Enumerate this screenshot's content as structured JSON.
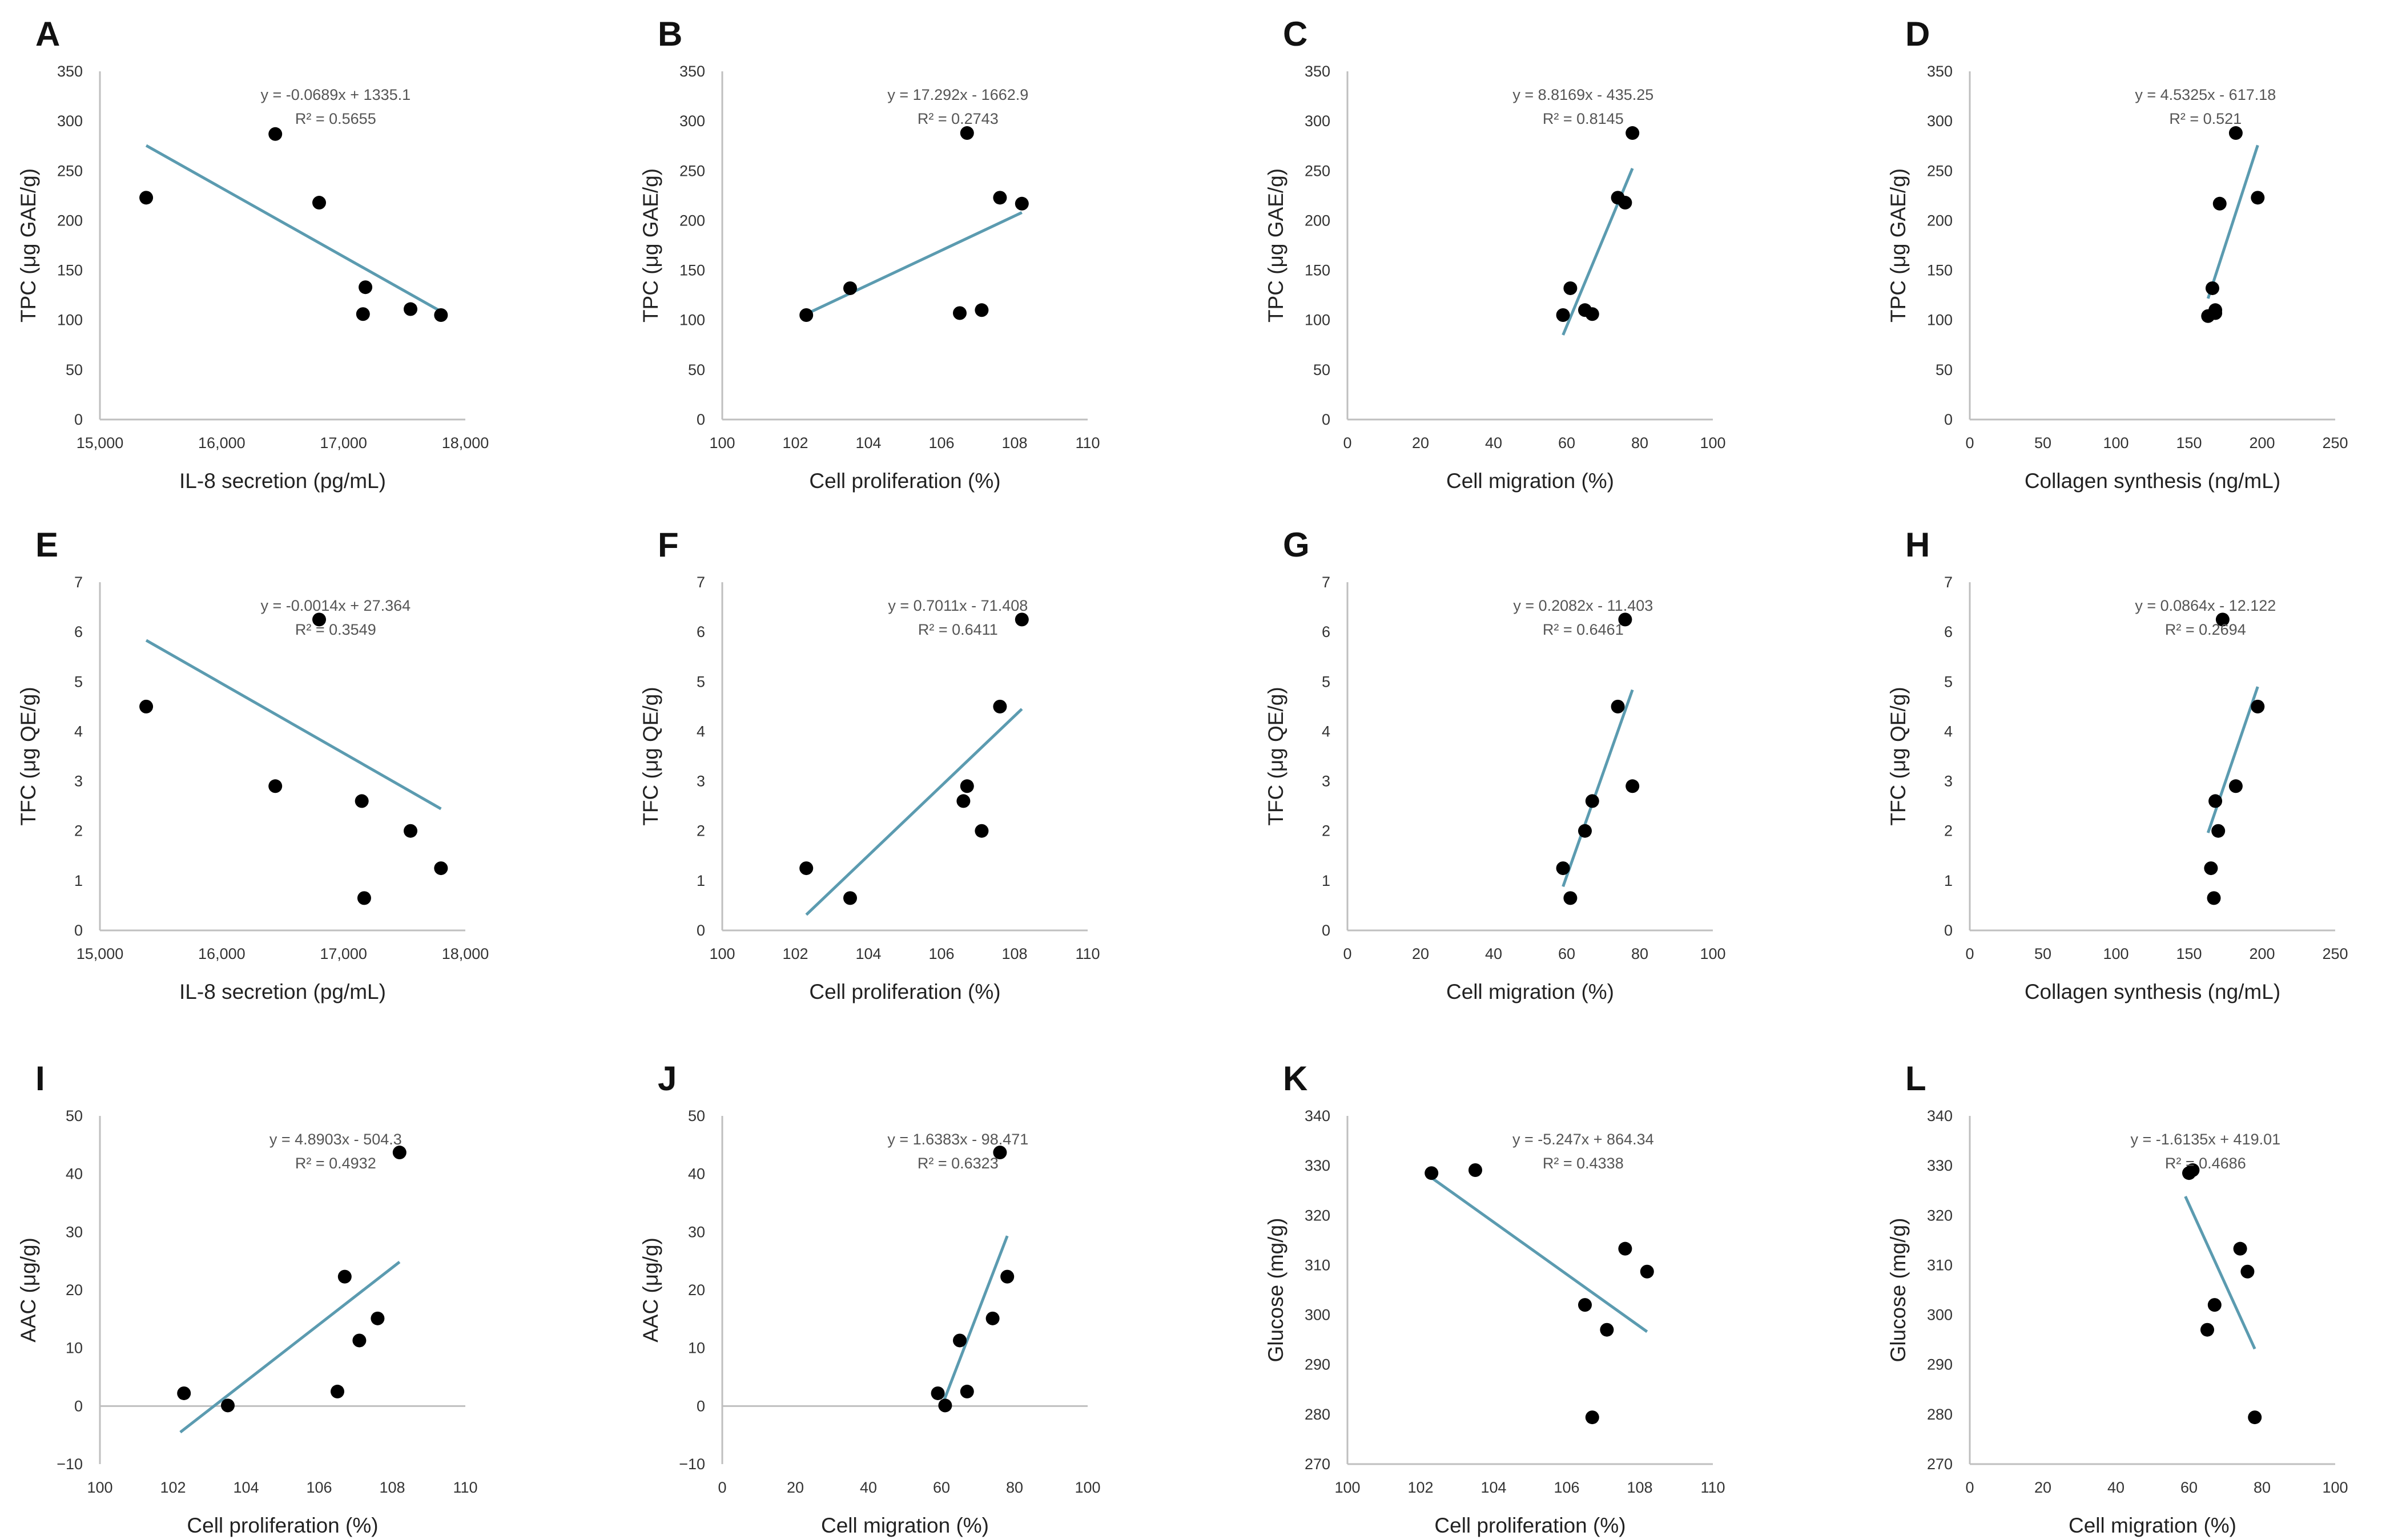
{
  "colors": {
    "trendline": "#5B9BB0",
    "point": "#000000",
    "axis": "#bfbfbf"
  },
  "chart_data": [
    {
      "letter": "A",
      "type": "scatter",
      "ylabel": "TPC (μg GAE/g)",
      "xlabel": "IL-8 secretion (pg/mL)",
      "xlim": [
        15000,
        18000
      ],
      "ylim": [
        0,
        350
      ],
      "xticks": [
        15000,
        16000,
        17000,
        18000
      ],
      "xtick_labels": [
        "15,000",
        "16,000",
        "17,000",
        "18,000"
      ],
      "yticks": [
        0,
        50,
        100,
        150,
        200,
        250,
        300,
        350
      ],
      "ytick_labels": [
        "0",
        "50",
        "100",
        "150",
        "200",
        "250",
        "300",
        "350"
      ],
      "points": [
        [
          15380,
          223
        ],
        [
          16440,
          287
        ],
        [
          16800,
          218
        ],
        [
          17180,
          133
        ],
        [
          17160,
          106
        ],
        [
          17550,
          111
        ],
        [
          17800,
          105
        ]
      ],
      "equation": "y = -0.0689x + 1335.1",
      "r2": "R² = 0.5655",
      "trend": {
        "slope": -0.0689,
        "intercept": 1335.1,
        "x": [
          15380,
          17800
        ]
      }
    },
    {
      "letter": "B",
      "type": "scatter",
      "ylabel": "TPC (μg GAE/g)",
      "xlabel": "Cell proliferation (%)",
      "xlim": [
        100,
        110
      ],
      "ylim": [
        0,
        350
      ],
      "xticks": [
        100,
        102,
        104,
        106,
        108,
        110
      ],
      "xtick_labels": [
        "100",
        "102",
        "104",
        "106",
        "108",
        "110"
      ],
      "yticks": [
        0,
        50,
        100,
        150,
        200,
        250,
        300,
        350
      ],
      "ytick_labels": [
        "0",
        "50",
        "100",
        "150",
        "200",
        "250",
        "300",
        "350"
      ],
      "points": [
        [
          102.3,
          105
        ],
        [
          103.5,
          132
        ],
        [
          106.5,
          107
        ],
        [
          106.7,
          288
        ],
        [
          107.1,
          110
        ],
        [
          107.6,
          223
        ],
        [
          108.2,
          217
        ]
      ],
      "equation": "y = 17.292x - 1662.9",
      "r2": "R² = 0.2743",
      "trend": {
        "slope": 17.292,
        "intercept": -1662.9,
        "x": [
          102.3,
          108.2
        ]
      }
    },
    {
      "letter": "C",
      "type": "scatter",
      "ylabel": "TPC (μg GAE/g)",
      "xlabel": "Cell migration (%)",
      "xlim": [
        0,
        100
      ],
      "ylim": [
        0,
        350
      ],
      "xticks": [
        0,
        20,
        40,
        60,
        80,
        100
      ],
      "xtick_labels": [
        "0",
        "20",
        "40",
        "60",
        "80",
        "100"
      ],
      "yticks": [
        0,
        50,
        100,
        150,
        200,
        250,
        300,
        350
      ],
      "ytick_labels": [
        "0",
        "50",
        "100",
        "150",
        "200",
        "250",
        "300",
        "350"
      ],
      "points": [
        [
          59,
          105
        ],
        [
          61,
          132
        ],
        [
          65,
          110
        ],
        [
          67,
          106
        ],
        [
          74,
          223
        ],
        [
          76,
          218
        ],
        [
          78,
          288
        ]
      ],
      "equation": "y = 8.8169x - 435.25",
      "r2": "R² = 0.8145",
      "trend": {
        "slope": 8.8169,
        "intercept": -435.25,
        "x": [
          59,
          78
        ]
      }
    },
    {
      "letter": "D",
      "type": "scatter",
      "ylabel": "TPC (μg GAE/g)",
      "xlabel": "Collagen synthesis (ng/mL)",
      "xlim": [
        0,
        250
      ],
      "ylim": [
        0,
        350
      ],
      "xticks": [
        0,
        50,
        100,
        150,
        200,
        250
      ],
      "xtick_labels": [
        "0",
        "50",
        "100",
        "150",
        "200",
        "250"
      ],
      "yticks": [
        0,
        50,
        100,
        150,
        200,
        250,
        300,
        350
      ],
      "ytick_labels": [
        "0",
        "50",
        "100",
        "150",
        "200",
        "250",
        "300",
        "350"
      ],
      "points": [
        [
          163,
          104
        ],
        [
          166,
          132
        ],
        [
          168,
          107
        ],
        [
          168,
          110
        ],
        [
          171,
          217
        ],
        [
          182,
          288
        ],
        [
          197,
          223
        ]
      ],
      "equation": "y = 4.5325x - 617.18",
      "r2": "R² = 0.521",
      "trend": {
        "slope": 4.5325,
        "intercept": -617.18,
        "x": [
          163,
          197
        ]
      }
    },
    {
      "letter": "E",
      "type": "scatter",
      "ylabel": "TFC (μg QE/g)",
      "xlabel": "IL-8 secretion (pg/mL)",
      "xlim": [
        15000,
        18000
      ],
      "ylim": [
        0,
        7
      ],
      "xticks": [
        15000,
        16000,
        17000,
        18000
      ],
      "xtick_labels": [
        "15,000",
        "16,000",
        "17,000",
        "18,000"
      ],
      "yticks": [
        0,
        1,
        2,
        3,
        4,
        5,
        6,
        7
      ],
      "ytick_labels": [
        "0",
        "1",
        "2",
        "3",
        "4",
        "5",
        "6",
        "7"
      ],
      "points": [
        [
          15380,
          4.5
        ],
        [
          16440,
          2.9
        ],
        [
          16800,
          6.25
        ],
        [
          17150,
          2.6
        ],
        [
          17170,
          0.65
        ],
        [
          17550,
          2.0
        ],
        [
          17800,
          1.25
        ]
      ],
      "equation": "y = -0.0014x + 27.364",
      "r2": "R² = 0.3549",
      "trend": {
        "slope": -0.0014,
        "intercept": 27.364,
        "x": [
          15380,
          17800
        ]
      }
    },
    {
      "letter": "F",
      "type": "scatter",
      "ylabel": "TFC (μg QE/g)",
      "xlabel": "Cell proliferation (%)",
      "xlim": [
        100,
        110
      ],
      "ylim": [
        0,
        7
      ],
      "xticks": [
        100,
        102,
        104,
        106,
        108,
        110
      ],
      "xtick_labels": [
        "100",
        "102",
        "104",
        "106",
        "108",
        "110"
      ],
      "yticks": [
        0,
        1,
        2,
        3,
        4,
        5,
        6,
        7
      ],
      "ytick_labels": [
        "0",
        "1",
        "2",
        "3",
        "4",
        "5",
        "6",
        "7"
      ],
      "points": [
        [
          102.3,
          1.25
        ],
        [
          103.5,
          0.65
        ],
        [
          106.6,
          2.6
        ],
        [
          106.7,
          2.9
        ],
        [
          107.1,
          2.0
        ],
        [
          107.6,
          4.5
        ],
        [
          108.2,
          6.25
        ]
      ],
      "equation": "y = 0.7011x - 71.408",
      "r2": "R² = 0.6411",
      "trend": {
        "slope": 0.7011,
        "intercept": -71.408,
        "x": [
          102.3,
          108.2
        ]
      }
    },
    {
      "letter": "G",
      "type": "scatter",
      "ylabel": "TFC (μg QE/g)",
      "xlabel": "Cell migration (%)",
      "xlim": [
        0,
        100
      ],
      "ylim": [
        0,
        7
      ],
      "xticks": [
        0,
        20,
        40,
        60,
        80,
        100
      ],
      "xtick_labels": [
        "0",
        "20",
        "40",
        "60",
        "80",
        "100"
      ],
      "yticks": [
        0,
        1,
        2,
        3,
        4,
        5,
        6,
        7
      ],
      "ytick_labels": [
        "0",
        "1",
        "2",
        "3",
        "4",
        "5",
        "6",
        "7"
      ],
      "points": [
        [
          59,
          1.25
        ],
        [
          61,
          0.65
        ],
        [
          65,
          2.0
        ],
        [
          67,
          2.6
        ],
        [
          74,
          4.5
        ],
        [
          76,
          6.25
        ],
        [
          78,
          2.9
        ]
      ],
      "equation": "y = 0.2082x - 11.403",
      "r2": "R² = 0.6461",
      "trend": {
        "slope": 0.2082,
        "intercept": -11.403,
        "x": [
          59,
          78
        ]
      }
    },
    {
      "letter": "H",
      "type": "scatter",
      "ylabel": "TFC (μg QE/g)",
      "xlabel": "Collagen synthesis (ng/mL)",
      "xlim": [
        0,
        250
      ],
      "ylim": [
        0,
        7
      ],
      "xticks": [
        0,
        50,
        100,
        150,
        200,
        250
      ],
      "xtick_labels": [
        "0",
        "50",
        "100",
        "150",
        "200",
        "250"
      ],
      "yticks": [
        0,
        1,
        2,
        3,
        4,
        5,
        6,
        7
      ],
      "ytick_labels": [
        "0",
        "1",
        "2",
        "3",
        "4",
        "5",
        "6",
        "7"
      ],
      "points": [
        [
          165,
          1.25
        ],
        [
          167,
          0.65
        ],
        [
          168,
          2.6
        ],
        [
          170,
          2.0
        ],
        [
          173,
          6.25
        ],
        [
          182,
          2.9
        ],
        [
          197,
          4.5
        ]
      ],
      "equation": "y = 0.0864x - 12.122",
      "r2": "R² = 0.2694",
      "trend": {
        "slope": 0.0864,
        "intercept": -12.122,
        "x": [
          163,
          197
        ]
      }
    },
    {
      "letter": "I",
      "type": "scatter",
      "ylabel": "AAC (μg/g)",
      "xlabel": "Cell proliferation (%)",
      "xlim": [
        100,
        110
      ],
      "ylim": [
        -10,
        50
      ],
      "xticks": [
        100,
        102,
        104,
        106,
        108,
        110
      ],
      "xtick_labels": [
        "100",
        "102",
        "104",
        "106",
        "108",
        "110"
      ],
      "yticks": [
        -10,
        0,
        10,
        20,
        30,
        40,
        50
      ],
      "ytick_labels": [
        "−10",
        "0",
        "10",
        "20",
        "30",
        "40",
        "50"
      ],
      "points": [
        [
          102.3,
          2.2
        ],
        [
          103.5,
          0.1
        ],
        [
          106.5,
          2.5
        ],
        [
          106.7,
          22.3
        ],
        [
          107.1,
          11.3
        ],
        [
          107.6,
          15.1
        ],
        [
          108.2,
          43.7
        ]
      ],
      "equation": "y = 4.8903x - 504.3",
      "r2": "R² = 0.4932",
      "trend": {
        "slope": 4.8903,
        "intercept": -504.3,
        "x": [
          102.2,
          108.2
        ]
      }
    },
    {
      "letter": "J",
      "type": "scatter",
      "ylabel": "AAC (μg/g)",
      "xlabel": "Cell migration (%)",
      "xlim": [
        0,
        100
      ],
      "ylim": [
        -10,
        50
      ],
      "xticks": [
        0,
        20,
        40,
        60,
        80,
        100
      ],
      "xtick_labels": [
        "0",
        "20",
        "40",
        "60",
        "80",
        "100"
      ],
      "yticks": [
        -10,
        0,
        10,
        20,
        30,
        40,
        50
      ],
      "ytick_labels": [
        "−10",
        "0",
        "10",
        "20",
        "30",
        "40",
        "50"
      ],
      "points": [
        [
          59,
          2.2
        ],
        [
          61,
          0.1
        ],
        [
          65,
          11.3
        ],
        [
          67,
          2.5
        ],
        [
          74,
          15.1
        ],
        [
          76,
          43.7
        ],
        [
          78,
          22.3
        ]
      ],
      "equation": "y = 1.6383x - 98.471",
      "r2": "R² = 0.6323",
      "trend": {
        "slope": 1.6383,
        "intercept": -98.471,
        "x": [
          60,
          78
        ]
      }
    },
    {
      "letter": "K",
      "type": "scatter",
      "ylabel": "Glucose (mg/g)",
      "xlabel": "Cell proliferation (%)",
      "xlim": [
        100,
        110
      ],
      "ylim": [
        270,
        340
      ],
      "xticks": [
        100,
        102,
        104,
        106,
        108,
        110
      ],
      "xtick_labels": [
        "100",
        "102",
        "104",
        "106",
        "108",
        "110"
      ],
      "yticks": [
        270,
        280,
        290,
        300,
        310,
        320,
        330,
        340
      ],
      "ytick_labels": [
        "270",
        "280",
        "290",
        "300",
        "310",
        "320",
        "330",
        "340"
      ],
      "points": [
        [
          102.3,
          328.5
        ],
        [
          103.5,
          329.1
        ],
        [
          106.5,
          302
        ],
        [
          106.7,
          279.4
        ],
        [
          107.1,
          297
        ],
        [
          107.6,
          313.3
        ],
        [
          108.2,
          308.7
        ]
      ],
      "equation": "y = -5.247x + 864.34",
      "r2": "R² = 0.4338",
      "trend": {
        "slope": -5.247,
        "intercept": 864.34,
        "x": [
          102.3,
          108.2
        ]
      }
    },
    {
      "letter": "L",
      "type": "scatter",
      "ylabel": "Glucose (mg/g)",
      "xlabel": "Cell migration (%)",
      "xlim": [
        0,
        100
      ],
      "ylim": [
        270,
        340
      ],
      "xticks": [
        0,
        20,
        40,
        60,
        80,
        100
      ],
      "xtick_labels": [
        "0",
        "20",
        "40",
        "60",
        "80",
        "100"
      ],
      "yticks": [
        270,
        280,
        290,
        300,
        310,
        320,
        330,
        340
      ],
      "ytick_labels": [
        "270",
        "280",
        "290",
        "300",
        "310",
        "320",
        "330",
        "340"
      ],
      "points": [
        [
          60,
          328.5
        ],
        [
          61,
          329.1
        ],
        [
          65,
          297
        ],
        [
          67,
          302
        ],
        [
          74,
          313.3
        ],
        [
          76,
          308.7
        ],
        [
          78,
          279.4
        ]
      ],
      "equation": "y = -1.6135x + 419.01",
      "r2": "R² = 0.4686",
      "trend": {
        "slope": -1.6135,
        "intercept": 419.01,
        "x": [
          59,
          78
        ]
      }
    }
  ]
}
